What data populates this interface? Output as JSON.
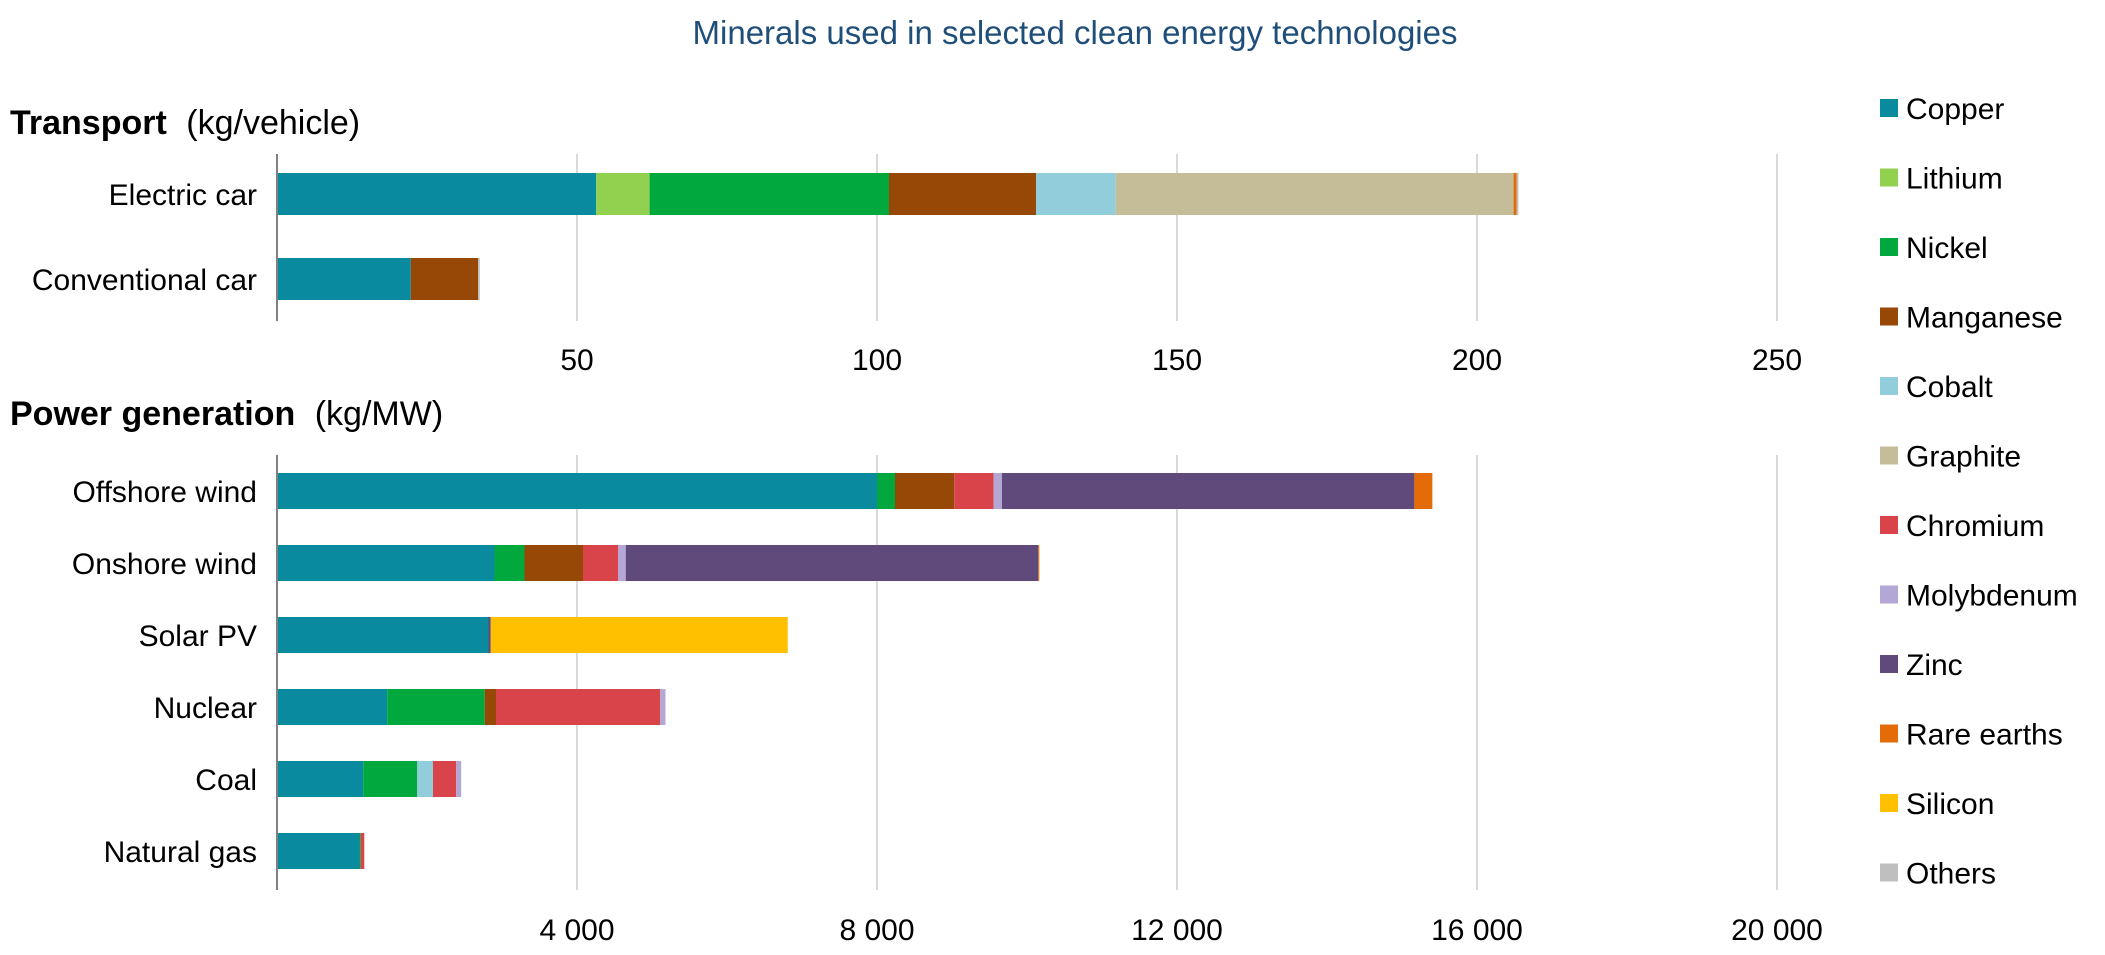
{
  "title": "Minerals used in selected clean energy technologies",
  "chart_data": [
    {
      "type": "bar",
      "orientation": "horizontal",
      "stacked": true,
      "panel_title_bold": "Transport",
      "panel_title_unit": "(kg/vehicle)",
      "categories": [
        "Electric car",
        "Conventional car"
      ],
      "xlim": [
        0,
        250
      ],
      "xticks": [
        50,
        100,
        150,
        200,
        250
      ],
      "xtick_labels": [
        "50",
        "100",
        "150",
        "200",
        "250"
      ],
      "grid": true,
      "series": [
        {
          "name": "Copper",
          "values": [
            53.2,
            22.3
          ]
        },
        {
          "name": "Lithium",
          "values": [
            8.9,
            0
          ]
        },
        {
          "name": "Nickel",
          "values": [
            39.9,
            0
          ]
        },
        {
          "name": "Manganese",
          "values": [
            24.5,
            11.2
          ]
        },
        {
          "name": "Cobalt",
          "values": [
            13.3,
            0
          ]
        },
        {
          "name": "Graphite",
          "values": [
            66.3,
            0
          ]
        },
        {
          "name": "Chromium",
          "values": [
            0,
            0
          ]
        },
        {
          "name": "Molybdenum",
          "values": [
            0,
            0
          ]
        },
        {
          "name": "Zinc",
          "values": [
            0,
            0
          ]
        },
        {
          "name": "Rare earths",
          "values": [
            0.5,
            0
          ]
        },
        {
          "name": "Silicon",
          "values": [
            0,
            0
          ]
        },
        {
          "name": "Others",
          "values": [
            0.3,
            0.3
          ]
        }
      ]
    },
    {
      "type": "bar",
      "orientation": "horizontal",
      "stacked": true,
      "panel_title_bold": "Power generation",
      "panel_title_unit": "(kg/MW)",
      "categories": [
        "Offshore wind",
        "Onshore wind",
        "Solar PV",
        "Nuclear",
        "Coal",
        "Natural gas"
      ],
      "xlim": [
        0,
        20000
      ],
      "xticks": [
        4000,
        8000,
        12000,
        16000,
        20000
      ],
      "xtick_labels": [
        "4 000",
        "8 000",
        "12 000",
        "16 000",
        "20 000"
      ],
      "grid": true,
      "series": [
        {
          "name": "Copper",
          "values": [
            8000,
            2900,
            2820,
            1470,
            1150,
            1100
          ]
        },
        {
          "name": "Lithium",
          "values": [
            0,
            0,
            0,
            0,
            0,
            0
          ]
        },
        {
          "name": "Nickel",
          "values": [
            240,
            400,
            0,
            1300,
            720,
            16
          ]
        },
        {
          "name": "Manganese",
          "values": [
            790,
            780,
            0,
            150,
            0,
            0
          ]
        },
        {
          "name": "Cobalt",
          "values": [
            0,
            0,
            0,
            0,
            210,
            0
          ]
        },
        {
          "name": "Graphite",
          "values": [
            0,
            0,
            0,
            0,
            0,
            0
          ]
        },
        {
          "name": "Chromium",
          "values": [
            525,
            470,
            0,
            2190,
            310,
            48
          ]
        },
        {
          "name": "Molybdenum",
          "values": [
            110,
            100,
            0,
            70,
            66,
            0
          ]
        },
        {
          "name": "Zinc",
          "values": [
            5500,
            5500,
            30,
            0,
            0,
            0
          ]
        },
        {
          "name": "Rare earths",
          "values": [
            240,
            14,
            0,
            0,
            0,
            0
          ]
        },
        {
          "name": "Silicon",
          "values": [
            0,
            0,
            3960,
            0,
            0,
            0
          ]
        },
        {
          "name": "Others",
          "values": [
            0,
            0,
            0,
            0,
            0,
            0
          ]
        }
      ]
    }
  ],
  "legend": {
    "placement": "right",
    "items": [
      {
        "name": "Copper",
        "color": "#0a8a9f"
      },
      {
        "name": "Lithium",
        "color": "#92d050"
      },
      {
        "name": "Nickel",
        "color": "#00a83e"
      },
      {
        "name": "Manganese",
        "color": "#974706"
      },
      {
        "name": "Cobalt",
        "color": "#92cddc"
      },
      {
        "name": "Graphite",
        "color": "#c4bd97"
      },
      {
        "name": "Chromium",
        "color": "#d9444a"
      },
      {
        "name": "Molybdenum",
        "color": "#b4a7d6"
      },
      {
        "name": "Zinc",
        "color": "#604a7b"
      },
      {
        "name": "Rare earths",
        "color": "#e36c09"
      },
      {
        "name": "Silicon",
        "color": "#ffc000"
      },
      {
        "name": "Others",
        "color": "#bfbfbf"
      }
    ]
  },
  "colors": {
    "title": "#1f4e79",
    "gridline": "#d9d9d9",
    "axis": "#808080"
  }
}
